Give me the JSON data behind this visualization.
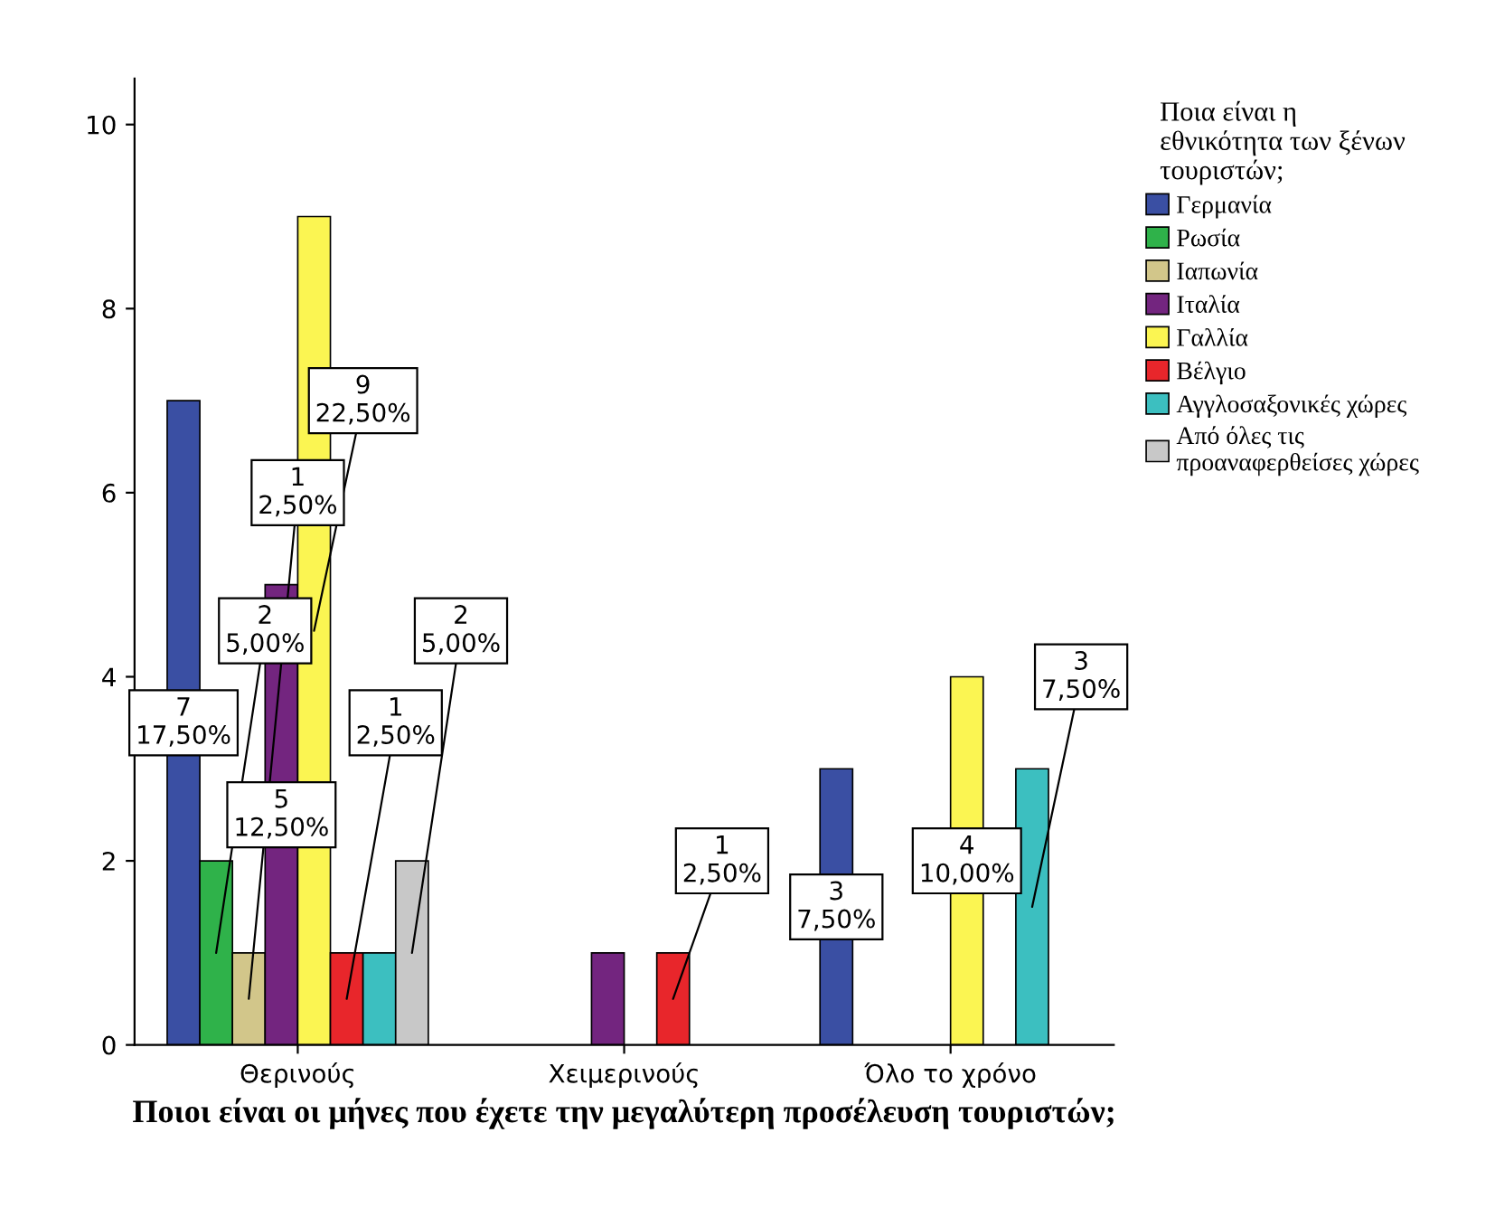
{
  "chart_data": {
    "type": "bar",
    "categories": [
      "Θερινούς",
      "Χειμερινούς",
      "Όλο το χρόνο"
    ],
    "xlabel": "Ποιοι είναι οι μήνες που έχετε την μεγαλύτερη προσέλευση τουριστών;",
    "legend_title": "Ποια είναι η\nεθνικότητα των ξένων\nτουριστών;",
    "legend": "right",
    "ylim": [
      0,
      10.5
    ],
    "yticks": [
      0,
      2,
      4,
      6,
      8,
      10
    ],
    "grid": false,
    "series": [
      {
        "name": "Γερμανία",
        "color": "#3a4fa3",
        "values": [
          7,
          null,
          3
        ],
        "value_labels": [
          "7\n17,50%",
          null,
          "3\n7,50%"
        ]
      },
      {
        "name": "Ρωσία",
        "color": "#2fb24a",
        "values": [
          2,
          null,
          null
        ],
        "value_labels": [
          "2\n5,00%",
          null,
          null
        ]
      },
      {
        "name": "Ιαπωνία",
        "color": "#d2c68a",
        "values": [
          1,
          null,
          null
        ],
        "value_labels": [
          "1\n2,50%",
          null,
          null
        ]
      },
      {
        "name": "Ιταλία",
        "color": "#73257f",
        "values": [
          5,
          1,
          null
        ],
        "value_labels": [
          "5\n12,50%",
          null,
          null
        ]
      },
      {
        "name": "Γαλλία",
        "color": "#fbf552",
        "values": [
          9,
          null,
          4
        ],
        "value_labels": [
          "9\n22,50%",
          null,
          "4\n10,00%"
        ]
      },
      {
        "name": "Βέλγιο",
        "color": "#e8262b",
        "values": [
          1,
          1,
          null
        ],
        "value_labels": [
          "1\n2,50%",
          "1\n2,50%",
          null
        ]
      },
      {
        "name": "Αγγλοσαξονικές χώρες",
        "color": "#3cbfc0",
        "values": [
          1,
          null,
          3
        ],
        "value_labels": [
          null,
          null,
          "3\n7,50%"
        ]
      },
      {
        "name": "Από όλες τις\nπροαναφερθείσες χώρες",
        "color": "#c8c8c8",
        "values": [
          2,
          null,
          null
        ],
        "value_labels": [
          "2\n5,00%",
          null,
          null
        ]
      }
    ]
  }
}
